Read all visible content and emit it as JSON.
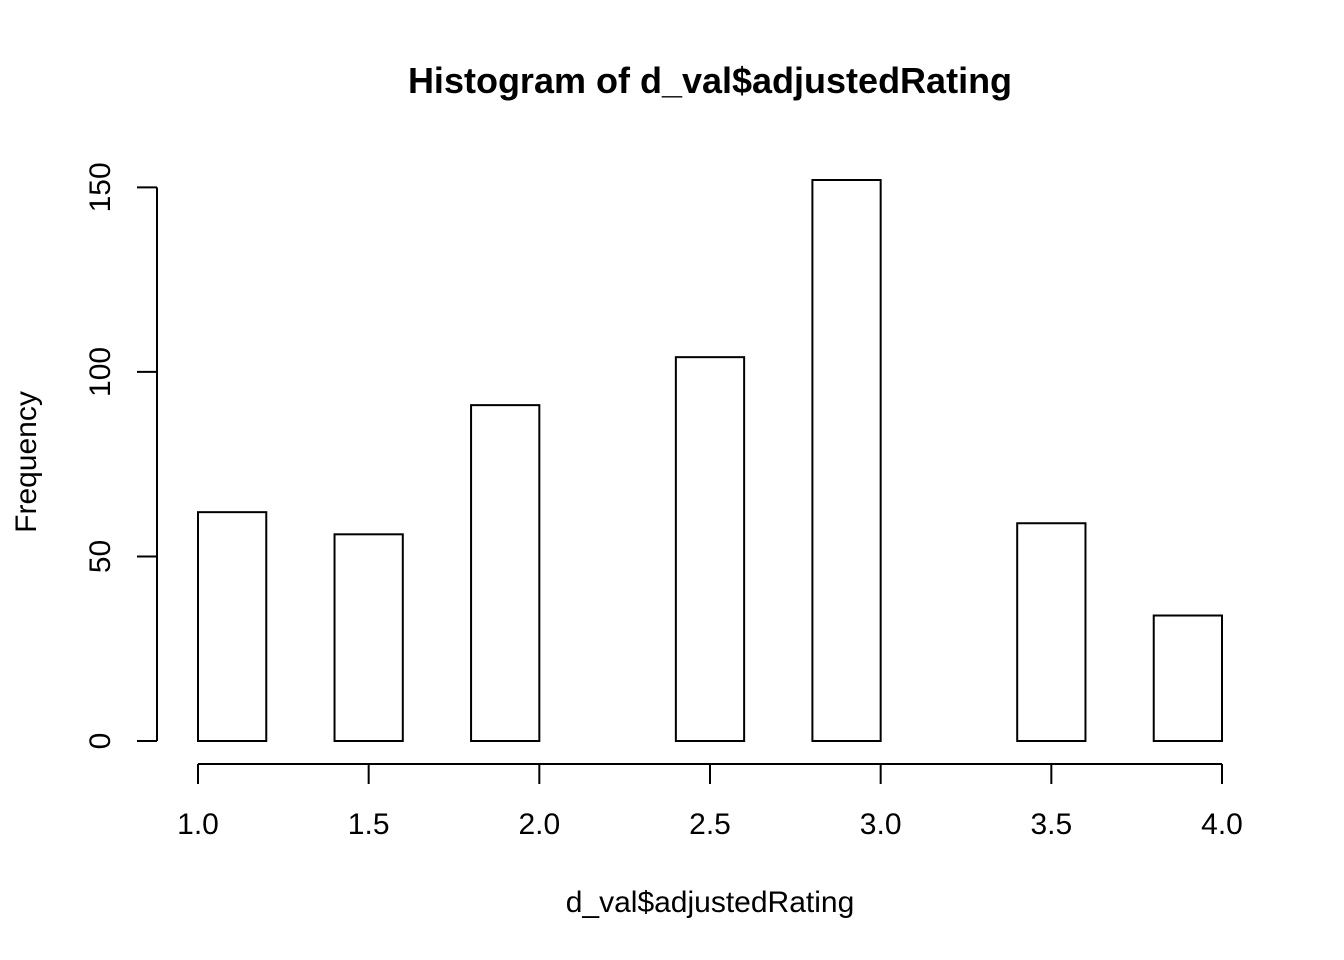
{
  "chart_data": {
    "type": "bar",
    "subtype": "histogram",
    "title": "Histogram of d_val$adjustedRating",
    "xlabel": "d_val$adjustedRating",
    "ylabel": "Frequency",
    "bin_width": 0.2,
    "bins": [
      {
        "start": 1.0,
        "end": 1.2,
        "count": 62
      },
      {
        "start": 1.2,
        "end": 1.4,
        "count": 0
      },
      {
        "start": 1.4,
        "end": 1.6,
        "count": 56
      },
      {
        "start": 1.6,
        "end": 1.8,
        "count": 0
      },
      {
        "start": 1.8,
        "end": 2.0,
        "count": 91
      },
      {
        "start": 2.0,
        "end": 2.2,
        "count": 0
      },
      {
        "start": 2.2,
        "end": 2.4,
        "count": 0
      },
      {
        "start": 2.4,
        "end": 2.6,
        "count": 104
      },
      {
        "start": 2.6,
        "end": 2.8,
        "count": 0
      },
      {
        "start": 2.8,
        "end": 3.0,
        "count": 152
      },
      {
        "start": 3.0,
        "end": 3.2,
        "count": 0
      },
      {
        "start": 3.2,
        "end": 3.4,
        "count": 0
      },
      {
        "start": 3.4,
        "end": 3.6,
        "count": 59
      },
      {
        "start": 3.6,
        "end": 3.8,
        "count": 0
      },
      {
        "start": 3.8,
        "end": 4.0,
        "count": 34
      }
    ],
    "xlim": [
      1.0,
      4.0
    ],
    "ylim": [
      0,
      152
    ],
    "x_ticks": [
      {
        "value": 1.0,
        "label": "1.0"
      },
      {
        "value": 1.5,
        "label": "1.5"
      },
      {
        "value": 2.0,
        "label": "2.0"
      },
      {
        "value": 2.5,
        "label": "2.5"
      },
      {
        "value": 3.0,
        "label": "3.0"
      },
      {
        "value": 3.5,
        "label": "3.5"
      },
      {
        "value": 4.0,
        "label": "4.0"
      }
    ],
    "y_ticks": [
      {
        "value": 0,
        "label": "0"
      },
      {
        "value": 50,
        "label": "50"
      },
      {
        "value": 100,
        "label": "100"
      },
      {
        "value": 150,
        "label": "150"
      }
    ],
    "grid": false,
    "legend": "none",
    "colors": {
      "bar_fill": "#ffffff",
      "bar_stroke": "#000000",
      "axis": "#000000",
      "background": "#ffffff"
    }
  }
}
